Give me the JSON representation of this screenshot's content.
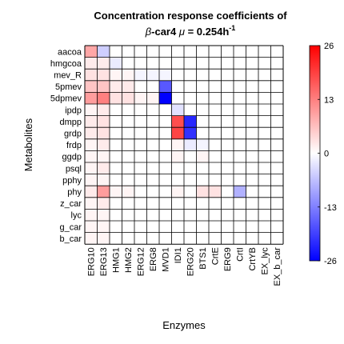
{
  "chart_data": {
    "type": "heatmap",
    "title_line1": "Concentration response coefficients of",
    "title_line2_greek_beta": "β",
    "title_line2_text": "-car4 ",
    "title_line2_greek_mu": "μ",
    "title_line2_rest": " = 0.254h",
    "title_line2_sup": "-1",
    "xlabel": "Enzymes",
    "ylabel": "Metabolites",
    "rows": [
      "aacoa",
      "hmgcoa",
      "mev_R",
      "5pmev",
      "5dpmev",
      "ipdp",
      "dmpp",
      "grdp",
      "frdp",
      "ggdp",
      "psql",
      "pphy",
      "phy",
      "z_car",
      "lyc",
      "g_car",
      "b_car"
    ],
    "columns": [
      "ERG10",
      "ERG13",
      "HMG1",
      "HMG2",
      "ERG12",
      "ERG8",
      "MVD1",
      "IDI1",
      "ERG20",
      "BTS1",
      "CrtE",
      "ERG9",
      "CrtI",
      "CrtYB",
      "EX_lyc",
      "EX_b_car"
    ],
    "values": [
      [
        9,
        -5,
        0,
        0,
        0,
        0,
        0,
        0,
        0,
        0,
        0,
        0,
        0,
        0,
        0,
        0
      ],
      [
        2,
        2,
        -2,
        0,
        0,
        0,
        0,
        0,
        0,
        0,
        0,
        0,
        0,
        0,
        0,
        0
      ],
      [
        3,
        3,
        1,
        1,
        -1,
        -1,
        -1,
        0,
        0,
        0,
        0,
        0,
        0,
        0,
        0,
        0
      ],
      [
        6,
        6,
        2,
        2,
        0,
        0,
        -17,
        0,
        0,
        0,
        0,
        0,
        0,
        0,
        0,
        0
      ],
      [
        10,
        13,
        3,
        3,
        1,
        1,
        -26,
        0,
        0,
        0,
        0,
        0,
        0,
        0,
        0,
        0
      ],
      [
        1,
        2,
        0,
        0,
        0,
        0,
        0,
        -3,
        0,
        0,
        0,
        0,
        0,
        0,
        0,
        0
      ],
      [
        2,
        3,
        0,
        0,
        0,
        0,
        0,
        18,
        -22,
        0,
        0,
        0,
        0,
        0,
        0,
        0
      ],
      [
        2,
        3,
        0,
        0,
        0,
        0,
        0,
        19,
        -21,
        0,
        0,
        0,
        0,
        0,
        0,
        0
      ],
      [
        1,
        2,
        0,
        0,
        0,
        0,
        0,
        1,
        -2,
        -1,
        0,
        0,
        0,
        0,
        0,
        0
      ],
      [
        1,
        1,
        0,
        0,
        0,
        0,
        0,
        1,
        0,
        1,
        0,
        0,
        0,
        0,
        0,
        0
      ],
      [
        1,
        2,
        0,
        0,
        0,
        0,
        0,
        0,
        0,
        0,
        0,
        0,
        0,
        0,
        0,
        0
      ],
      [
        1,
        1,
        0,
        0,
        0,
        0,
        0,
        0,
        0,
        0,
        0,
        0,
        0,
        0,
        0,
        0
      ],
      [
        2,
        10,
        1,
        1,
        0,
        0,
        0,
        1,
        0,
        3,
        3,
        0,
        -8,
        0,
        0,
        0
      ],
      [
        1,
        2,
        0,
        0,
        0,
        0,
        0,
        0,
        0,
        0,
        0,
        0,
        0,
        0,
        0,
        0
      ],
      [
        1,
        1,
        0,
        0,
        0,
        0,
        0,
        0,
        0,
        0,
        0,
        0,
        0,
        0,
        0,
        0
      ],
      [
        1,
        1,
        0,
        0,
        0,
        0,
        0,
        0,
        0,
        0,
        0,
        0,
        0,
        0,
        0,
        0
      ],
      [
        1,
        1,
        0,
        0,
        0,
        0,
        0,
        0,
        0,
        0,
        0,
        0,
        0,
        0,
        0,
        0
      ]
    ],
    "color_range": [
      -26,
      26
    ],
    "colorbar_ticks": [
      26,
      13,
      0,
      -13,
      -26
    ],
    "colormap": {
      "negative": "#0000ff",
      "zero": "#ffffff",
      "positive": "#ff0000"
    },
    "grid": true
  }
}
